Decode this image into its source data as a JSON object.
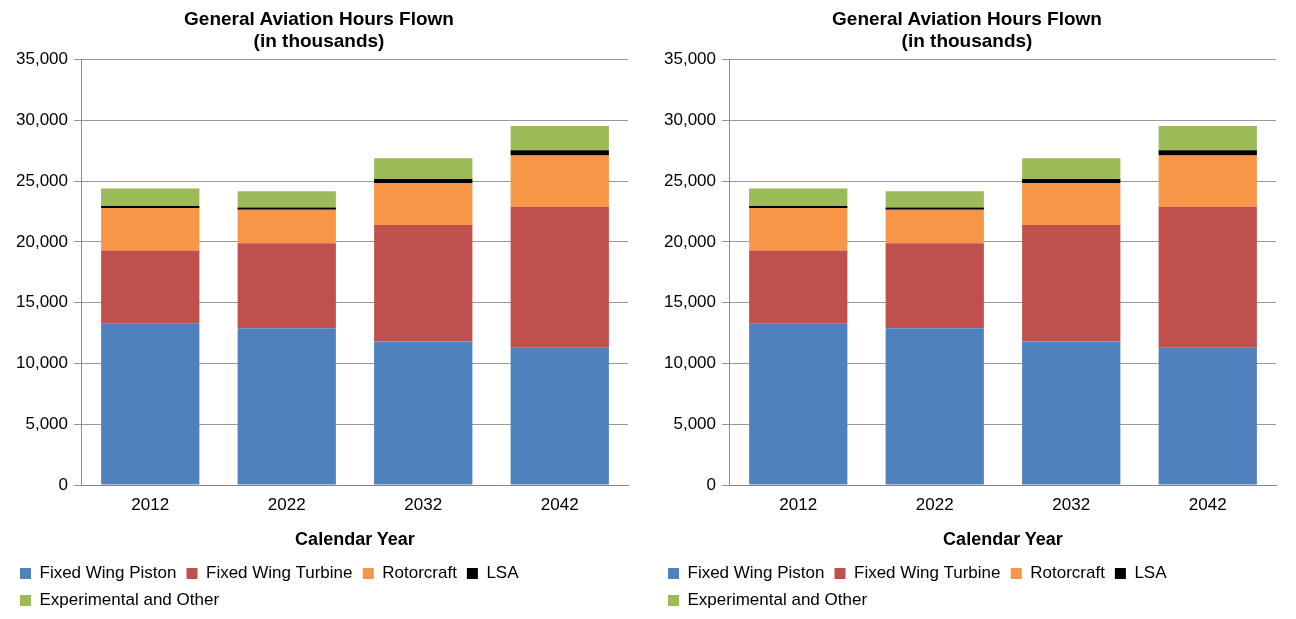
{
  "chart_data": [
    {
      "type": "bar",
      "title": "General Aviation Hours Flown\n(in thousands)",
      "xlabel": "Calendar Year",
      "categories": [
        "2012",
        "2022",
        "2032",
        "2042"
      ],
      "stacked": true,
      "series": [
        {
          "name": "Fixed Wing Piston",
          "color": "#4f81bd",
          "values": [
            13300,
            12900,
            11800,
            11300
          ]
        },
        {
          "name": "Fixed Wing Turbine",
          "color": "#c0504d",
          "values": [
            6000,
            7000,
            9600,
            11600
          ]
        },
        {
          "name": "Rotorcraft",
          "color": "#f79646",
          "values": [
            3500,
            2750,
            3450,
            4200
          ]
        },
        {
          "name": "LSA",
          "color": "#000000",
          "values": [
            160,
            190,
            330,
            450
          ]
        },
        {
          "name": "Experimental and Other",
          "color": "#9bbb59",
          "values": [
            1430,
            1330,
            1710,
            1980
          ]
        }
      ],
      "ylim": [
        0,
        35000
      ],
      "yticks": [
        {
          "value": 0,
          "label": "0"
        },
        {
          "value": 5000,
          "label": "5,000"
        },
        {
          "value": 10000,
          "label": "10,000"
        },
        {
          "value": 15000,
          "label": "15,000"
        },
        {
          "value": 20000,
          "label": "20,000"
        },
        {
          "value": 25000,
          "label": "25,000"
        },
        {
          "value": 30000,
          "label": "30,000"
        },
        {
          "value": 35000,
          "label": "35,000"
        }
      ],
      "grid": "y",
      "legend": "bottom"
    },
    {
      "type": "bar",
      "title": "General Aviation Hours Flown\n(in thousands)",
      "xlabel": "Calendar Year",
      "categories": [
        "2012",
        "2022",
        "2032",
        "2042"
      ],
      "stacked": true,
      "series": [
        {
          "name": "Fixed Wing Piston",
          "color": "#4f81bd",
          "values": [
            13300,
            12900,
            11800,
            11300
          ]
        },
        {
          "name": "Fixed Wing Turbine",
          "color": "#c0504d",
          "values": [
            6000,
            7000,
            9600,
            11600
          ]
        },
        {
          "name": "Rotorcraft",
          "color": "#f79646",
          "values": [
            3500,
            2750,
            3450,
            4200
          ]
        },
        {
          "name": "LSA",
          "color": "#000000",
          "values": [
            160,
            190,
            330,
            450
          ]
        },
        {
          "name": "Experimental and Other",
          "color": "#9bbb59",
          "values": [
            1430,
            1330,
            1710,
            1980
          ]
        }
      ],
      "ylim": [
        0,
        35000
      ],
      "yticks": [
        {
          "value": 0,
          "label": "0"
        },
        {
          "value": 5000,
          "label": "5,000"
        },
        {
          "value": 10000,
          "label": "10,000"
        },
        {
          "value": 15000,
          "label": "15,000"
        },
        {
          "value": 20000,
          "label": "20,000"
        },
        {
          "value": 25000,
          "label": "25,000"
        },
        {
          "value": 30000,
          "label": "30,000"
        },
        {
          "value": 35000,
          "label": "35,000"
        }
      ],
      "grid": "y",
      "legend": "bottom"
    }
  ]
}
